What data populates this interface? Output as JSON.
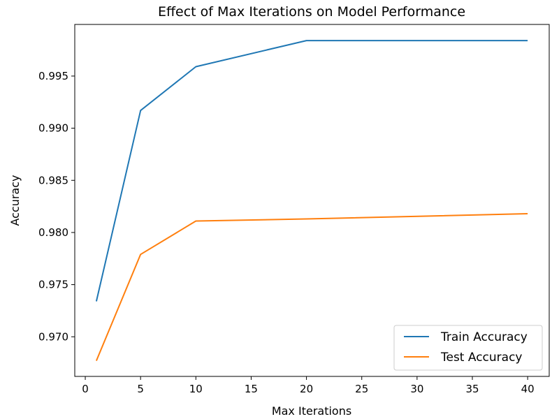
{
  "chart_data": {
    "type": "line",
    "title": "Effect of Max Iterations on Model Performance",
    "xlabel": "Max Iterations",
    "ylabel": "Accuracy",
    "x": [
      1,
      5,
      10,
      20,
      40
    ],
    "series": [
      {
        "name": "Train Accuracy",
        "color": "#1f77b4",
        "values": [
          0.9734,
          0.9917,
          0.9959,
          0.9984,
          0.9984
        ]
      },
      {
        "name": "Test Accuracy",
        "color": "#ff7f0e",
        "values": [
          0.9677,
          0.9779,
          0.9811,
          0.9813,
          0.9818
        ]
      }
    ],
    "xlim": [
      -0.95,
      41.95
    ],
    "ylim": [
      0.9662,
      0.99995
    ],
    "xticks": [
      0,
      5,
      10,
      15,
      20,
      25,
      30,
      35,
      40
    ],
    "xtick_labels": [
      "0",
      "5",
      "10",
      "15",
      "20",
      "25",
      "30",
      "35",
      "40"
    ],
    "yticks": [
      0.97,
      0.975,
      0.98,
      0.985,
      0.99,
      0.995
    ],
    "ytick_labels": [
      "0.970",
      "0.975",
      "0.980",
      "0.985",
      "0.990",
      "0.995"
    ],
    "grid": false,
    "legend_position": "lower-right"
  }
}
